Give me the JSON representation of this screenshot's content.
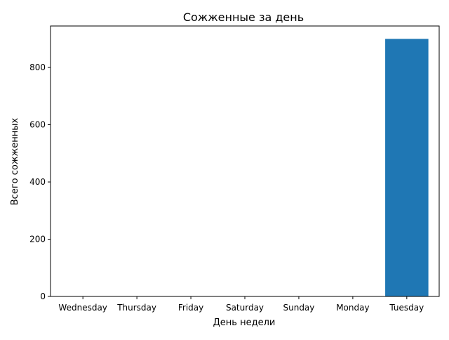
{
  "chart_data": {
    "type": "bar",
    "title": "Сожженные за день",
    "xlabel": "День недели",
    "ylabel": "Всего сожженных",
    "categories": [
      "Wednesday",
      "Thursday",
      "Friday",
      "Saturday",
      "Sunday",
      "Monday",
      "Tuesday"
    ],
    "values": [
      0,
      0,
      0,
      0,
      0,
      0,
      900
    ],
    "ylim": [
      0,
      945
    ],
    "yticks": [
      0,
      200,
      400,
      600,
      800
    ],
    "bar_color": "#1f77b4",
    "grid": false,
    "legend": "none"
  }
}
